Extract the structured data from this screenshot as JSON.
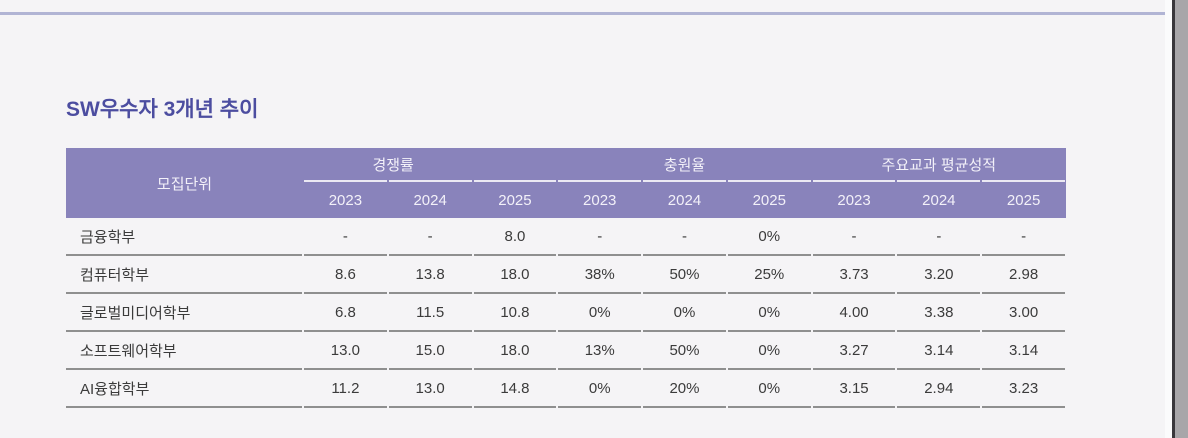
{
  "page": {
    "title": "SW우수자 3개년 추이"
  },
  "table": {
    "row_header_label": "모집단위",
    "groups": [
      {
        "label": "경쟁률",
        "years": [
          "2023",
          "2024",
          "2025"
        ]
      },
      {
        "label": "충원율",
        "years": [
          "2023",
          "2024",
          "2025"
        ]
      },
      {
        "label": "주요교과 평균성적",
        "years": [
          "2023",
          "2024",
          "2025"
        ]
      }
    ],
    "rows": [
      {
        "label": "금융학부",
        "values": [
          "-",
          "-",
          "8.0",
          "-",
          "-",
          "0%",
          "-",
          "-",
          "-"
        ]
      },
      {
        "label": "컴퓨터학부",
        "values": [
          "8.6",
          "13.8",
          "18.0",
          "38%",
          "50%",
          "25%",
          "3.73",
          "3.20",
          "2.98"
        ]
      },
      {
        "label": "글로벌미디어학부",
        "values": [
          "6.8",
          "11.5",
          "10.8",
          "0%",
          "0%",
          "0%",
          "4.00",
          "3.38",
          "3.00"
        ]
      },
      {
        "label": "소프트웨어학부",
        "values": [
          "13.0",
          "15.0",
          "18.0",
          "13%",
          "50%",
          "0%",
          "3.27",
          "3.14",
          "3.14"
        ]
      },
      {
        "label": "AI융합학부",
        "values": [
          "11.2",
          "13.0",
          "14.8",
          "0%",
          "20%",
          "0%",
          "3.15",
          "2.94",
          "3.23"
        ]
      }
    ]
  },
  "colors": {
    "header_bg": "#8983bb",
    "title_text": "#4c4da0",
    "top_rule": "#b1b4d4",
    "row_separator": "#8f8f8f",
    "page_bg": "#f5f4f6"
  }
}
